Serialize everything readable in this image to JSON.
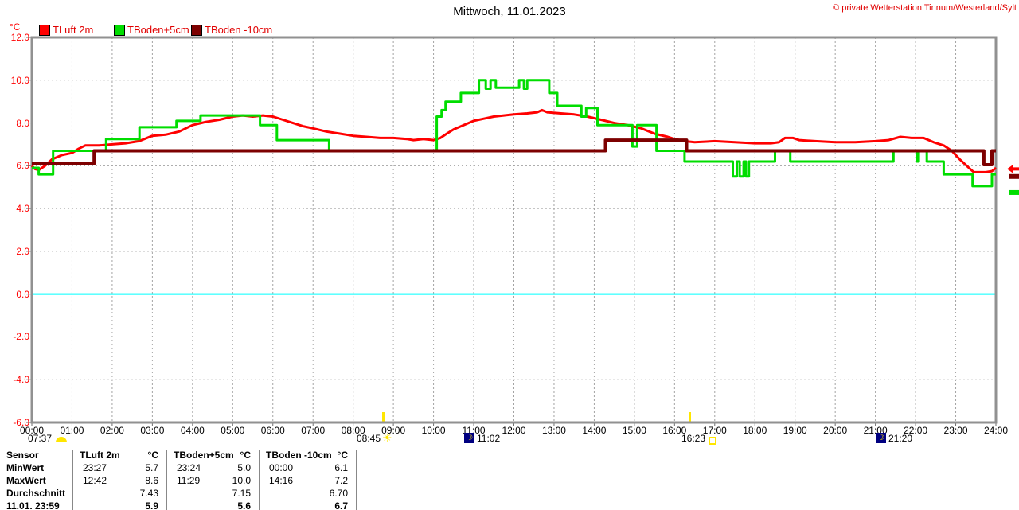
{
  "header": {
    "title": "Mittwoch, 11.01.2023",
    "copyright": "© private Wetterstation Tinnum/Westerland/Sylt"
  },
  "chart_data": {
    "type": "line",
    "title": "Mittwoch, 11.01.2023",
    "ylabel": "°C",
    "ylim": [
      -6.0,
      12.0
    ],
    "xlim_hours": [
      0,
      24
    ],
    "grid": "dashed gray, hourly vertical, 2°C horizontal",
    "legend_position": "top-left",
    "zero_line": {
      "value": 0.0,
      "color": "#00ffff"
    },
    "axis_color": "#919191",
    "grid_color": "#a3a3a3",
    "y_tick_values": [
      12,
      10,
      8,
      6,
      4,
      2,
      0,
      -2,
      -4,
      -6
    ],
    "y_tick_labels": [
      "12.0",
      "10.0",
      "8.0",
      "6.0",
      "4.0",
      "2.0",
      "0.0",
      "-2.0",
      "-4.0",
      "-6.0"
    ],
    "x_tick_labels": [
      "00:00",
      "01:00",
      "02:00",
      "03:00",
      "04:00",
      "05:00",
      "06:00",
      "07:00",
      "08:00",
      "09:00",
      "10:00",
      "11:00",
      "12:00",
      "13:00",
      "14:00",
      "15:00",
      "16:00",
      "17:00",
      "18:00",
      "19:00",
      "20:00",
      "21:00",
      "22:00",
      "23:00",
      "24:00"
    ],
    "series": [
      {
        "name": "TLuft 2m",
        "color": "#ff0000",
        "width": 3,
        "interpolation": "linear",
        "points_time_hours_value_c": [
          [
            0,
            6.0
          ],
          [
            0.08,
            5.85
          ],
          [
            0.17,
            5.8
          ],
          [
            0.33,
            6.0
          ],
          [
            0.5,
            6.3
          ],
          [
            0.75,
            6.5
          ],
          [
            1,
            6.6
          ],
          [
            1.17,
            6.8
          ],
          [
            1.33,
            6.95
          ],
          [
            1.67,
            6.95
          ],
          [
            2,
            7.0
          ],
          [
            2.33,
            7.05
          ],
          [
            2.67,
            7.15
          ],
          [
            3,
            7.4
          ],
          [
            3.33,
            7.45
          ],
          [
            3.67,
            7.6
          ],
          [
            4,
            7.9
          ],
          [
            4.33,
            8.05
          ],
          [
            4.67,
            8.15
          ],
          [
            5,
            8.3
          ],
          [
            5.25,
            8.35
          ],
          [
            5.5,
            8.3
          ],
          [
            5.75,
            8.35
          ],
          [
            6,
            8.3
          ],
          [
            6.25,
            8.15
          ],
          [
            6.5,
            8.0
          ],
          [
            6.75,
            7.85
          ],
          [
            7,
            7.75
          ],
          [
            7.33,
            7.6
          ],
          [
            7.67,
            7.5
          ],
          [
            8,
            7.4
          ],
          [
            8.33,
            7.35
          ],
          [
            8.67,
            7.3
          ],
          [
            9,
            7.3
          ],
          [
            9.33,
            7.25
          ],
          [
            9.5,
            7.2
          ],
          [
            9.75,
            7.25
          ],
          [
            10,
            7.2
          ],
          [
            10.17,
            7.3
          ],
          [
            10.33,
            7.5
          ],
          [
            10.5,
            7.7
          ],
          [
            10.75,
            7.9
          ],
          [
            11,
            8.1
          ],
          [
            11.25,
            8.2
          ],
          [
            11.5,
            8.3
          ],
          [
            11.75,
            8.35
          ],
          [
            12,
            8.4
          ],
          [
            12.33,
            8.45
          ],
          [
            12.58,
            8.5
          ],
          [
            12.7,
            8.6
          ],
          [
            12.83,
            8.5
          ],
          [
            13.17,
            8.45
          ],
          [
            13.5,
            8.4
          ],
          [
            13.83,
            8.3
          ],
          [
            14.17,
            8.15
          ],
          [
            14.5,
            8.0
          ],
          [
            14.83,
            7.9
          ],
          [
            15.17,
            7.75
          ],
          [
            15.5,
            7.5
          ],
          [
            15.83,
            7.35
          ],
          [
            16,
            7.25
          ],
          [
            16.25,
            7.15
          ],
          [
            16.5,
            7.1
          ],
          [
            17,
            7.15
          ],
          [
            17.5,
            7.1
          ],
          [
            18,
            7.05
          ],
          [
            18.4,
            7.05
          ],
          [
            18.6,
            7.1
          ],
          [
            18.75,
            7.3
          ],
          [
            18.95,
            7.3
          ],
          [
            19.1,
            7.2
          ],
          [
            19.5,
            7.15
          ],
          [
            20,
            7.1
          ],
          [
            20.5,
            7.1
          ],
          [
            21,
            7.15
          ],
          [
            21.33,
            7.2
          ],
          [
            21.62,
            7.35
          ],
          [
            21.9,
            7.3
          ],
          [
            22.2,
            7.3
          ],
          [
            22.45,
            7.1
          ],
          [
            22.7,
            6.95
          ],
          [
            22.9,
            6.7
          ],
          [
            23.1,
            6.3
          ],
          [
            23.3,
            5.95
          ],
          [
            23.45,
            5.7
          ],
          [
            23.75,
            5.7
          ],
          [
            23.9,
            5.75
          ],
          [
            24,
            5.9
          ]
        ]
      },
      {
        "name": "TBoden+5cm",
        "color": "#00dd00",
        "width": 3,
        "interpolation": "step-after",
        "points_time_hours_value_c": [
          [
            0,
            5.9
          ],
          [
            0.17,
            5.6
          ],
          [
            0.53,
            6.7
          ],
          [
            1.85,
            7.25
          ],
          [
            2.68,
            7.8
          ],
          [
            3.6,
            8.1
          ],
          [
            4.2,
            8.35
          ],
          [
            5.68,
            7.9
          ],
          [
            6.1,
            7.2
          ],
          [
            7.4,
            6.7
          ],
          [
            10.08,
            8.3
          ],
          [
            10.2,
            8.6
          ],
          [
            10.3,
            9.0
          ],
          [
            10.68,
            9.4
          ],
          [
            11.13,
            10.0
          ],
          [
            11.3,
            9.6
          ],
          [
            11.42,
            10.0
          ],
          [
            11.55,
            9.65
          ],
          [
            12.13,
            10.0
          ],
          [
            12.25,
            9.6
          ],
          [
            12.33,
            10.0
          ],
          [
            12.88,
            9.4
          ],
          [
            13.08,
            8.8
          ],
          [
            13.68,
            8.3
          ],
          [
            13.8,
            8.7
          ],
          [
            14.08,
            7.9
          ],
          [
            14.95,
            6.9
          ],
          [
            15.07,
            7.9
          ],
          [
            15.55,
            6.7
          ],
          [
            16.25,
            6.2
          ],
          [
            17.45,
            5.5
          ],
          [
            17.55,
            6.2
          ],
          [
            17.62,
            5.5
          ],
          [
            17.72,
            6.2
          ],
          [
            17.78,
            5.5
          ],
          [
            17.85,
            6.2
          ],
          [
            18.5,
            6.7
          ],
          [
            18.88,
            6.2
          ],
          [
            21.45,
            6.7
          ],
          [
            22.03,
            6.2
          ],
          [
            22.08,
            6.7
          ],
          [
            22.28,
            6.2
          ],
          [
            22.7,
            5.6
          ],
          [
            23.42,
            5.05
          ],
          [
            23.9,
            5.6
          ],
          [
            24,
            5.6
          ]
        ]
      },
      {
        "name": "TBoden -10cm",
        "color": "#7d0000",
        "width": 4,
        "interpolation": "step-after",
        "points_time_hours_value_c": [
          [
            0,
            6.1
          ],
          [
            1.55,
            6.7
          ],
          [
            14.28,
            7.2
          ],
          [
            16.3,
            6.7
          ],
          [
            23.7,
            6.05
          ],
          [
            23.9,
            6.7
          ],
          [
            24,
            6.7
          ]
        ]
      }
    ],
    "edge_markers": [
      {
        "series": "TLuft 2m",
        "color": "#ff0000",
        "value_c": 5.85,
        "shape": "arrow-left"
      },
      {
        "series": "TBoden -10cm",
        "color": "#7d0000",
        "value_c": 5.5,
        "shape": "bar"
      },
      {
        "series": "TBoden+5cm",
        "color": "#00dd00",
        "value_c": 4.75,
        "shape": "bar"
      }
    ],
    "sun_moon_events": [
      {
        "label": "07:37",
        "icon": "dawn-icon"
      },
      {
        "label": "08:45",
        "icon": "sunrise-icon",
        "axis_tick_hour": 8.75
      },
      {
        "label": "11:02",
        "icon": "moonrise-icon"
      },
      {
        "label": "16:23",
        "icon": "sunset-icon",
        "axis_tick_hour": 16.38
      },
      {
        "label": "21:20",
        "icon": "moonset-icon"
      }
    ]
  },
  "stats_table": {
    "corner_header": "Sensor",
    "sensors": [
      {
        "name": "TLuft 2m",
        "unit": "°C"
      },
      {
        "name": "TBoden+5cm",
        "unit": "°C"
      },
      {
        "name": "TBoden -10cm",
        "unit": "°C"
      }
    ],
    "rows": [
      {
        "label": "MinWert",
        "bold_values": false,
        "cells": [
          {
            "time": "23:27",
            "value": "5.7"
          },
          {
            "time": "23:24",
            "value": "5.0"
          },
          {
            "time": "00:00",
            "value": "6.1"
          }
        ]
      },
      {
        "label": "MaxWert",
        "bold_values": false,
        "cells": [
          {
            "time": "12:42",
            "value": "8.6"
          },
          {
            "time": "11:29",
            "value": "10.0"
          },
          {
            "time": "14:16",
            "value": "7.2"
          }
        ]
      },
      {
        "label": "Durchschnitt",
        "bold_values": false,
        "cells": [
          {
            "time": "",
            "value": "7.43"
          },
          {
            "time": "",
            "value": "7.15"
          },
          {
            "time": "",
            "value": "6.70"
          }
        ]
      },
      {
        "label": "11.01. 23:59",
        "bold_values": true,
        "cells": [
          {
            "time": "",
            "value": "5.9"
          },
          {
            "time": "",
            "value": "5.6"
          },
          {
            "time": "",
            "value": "6.7"
          }
        ]
      }
    ]
  }
}
